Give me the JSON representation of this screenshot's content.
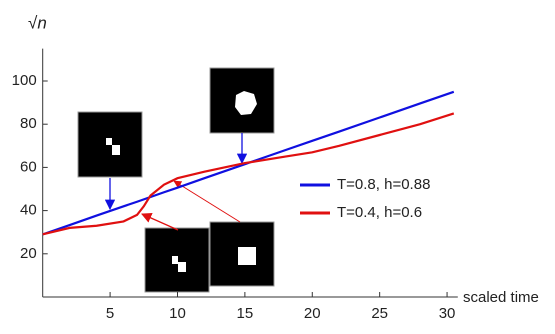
{
  "chart_data": {
    "type": "line",
    "xlabel": "scaled time",
    "ylabel": "√n",
    "x": [
      0,
      2,
      4,
      6,
      7,
      7.5,
      8,
      9,
      10,
      12,
      15,
      18,
      20,
      22,
      25,
      28,
      30.5
    ],
    "series": [
      {
        "name": "T=0.8, h=0.88",
        "color": "#1010e0",
        "values": [
          29,
          33.3,
          37.7,
          42,
          44.1,
          45.2,
          46.3,
          48.5,
          50.6,
          55,
          61.5,
          68,
          72.3,
          76.6,
          83.1,
          89.6,
          95
        ]
      },
      {
        "name": "T=0.4, h=0.6",
        "color": "#e01010",
        "values": [
          29,
          32,
          33,
          35,
          38,
          42,
          47,
          52,
          55,
          58,
          62,
          65,
          67,
          70,
          75,
          80,
          85
        ]
      }
    ],
    "xlim": [
      0,
      30.5
    ],
    "ylim": [
      0,
      115
    ],
    "xticks": [
      5,
      10,
      15,
      20,
      25,
      30
    ],
    "yticks": [
      20,
      40,
      60,
      80,
      100
    ],
    "grid": false,
    "legend": "right"
  }
}
